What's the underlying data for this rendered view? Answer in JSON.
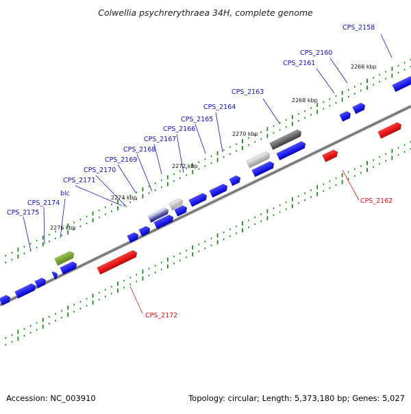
{
  "header": {
    "title": "Colwellia psychrerythraea 34H, complete genome"
  },
  "footer": {
    "accession": "Accession: NC_003910",
    "topology": "Topology: circular; Length: 5,373,180 bp; Genes: 5,027"
  },
  "colors": {
    "forward_gene": "#1010e6",
    "reverse_gene": "#e01010",
    "highlight_gene": "#6b9a2a",
    "backbone": "#8c8c8c",
    "ticks": "#1a8a1a",
    "label_forward": "#1010c0",
    "label_reverse": "#d01010"
  },
  "genome_view": {
    "kbp_labels": [
      "2266 kbp",
      "2268 kbp",
      "2270 kbp",
      "2272 kbp",
      "2274 kbp",
      "2276 kbp"
    ],
    "gene_labels": [
      "CPS_2158",
      "CPS_2160",
      "CPS_2161",
      "CPS_2163",
      "CPS_2164",
      "CPS_2165",
      "CPS_2166",
      "CPS_2167",
      "CPS_2168",
      "CPS_2169",
      "CPS_2170",
      "CPS_2171",
      "blc",
      "CPS_2174",
      "CPS_2175",
      "CPS_2162",
      "CPS_2172"
    ]
  }
}
